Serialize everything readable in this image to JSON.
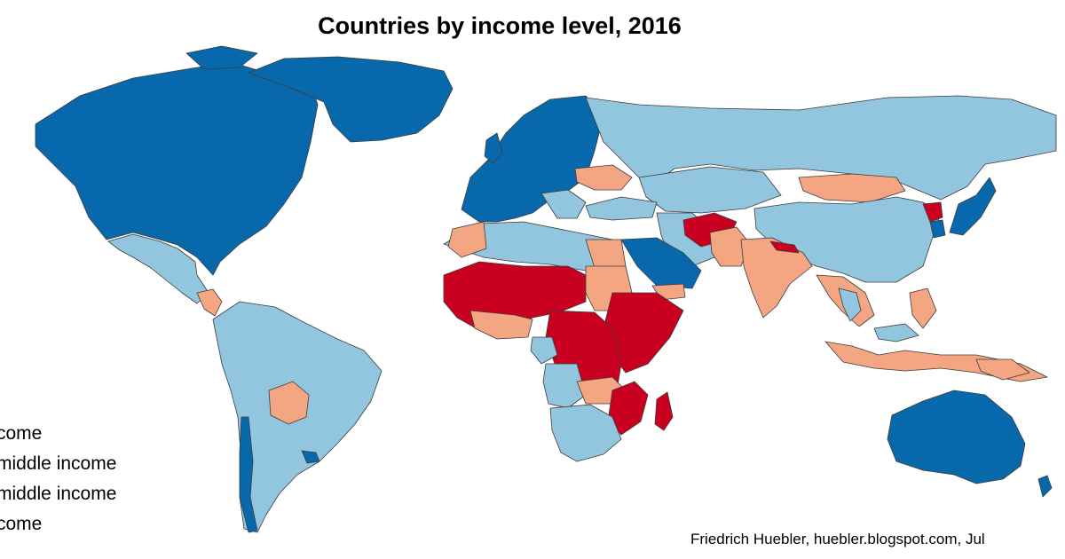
{
  "title": "Countries by income level, 2016",
  "legend": [
    {
      "label": "come",
      "category": "high-income",
      "color": "#0868ac"
    },
    {
      "label": "middle income",
      "category": "upper-middle-income",
      "color": "#92c5de"
    },
    {
      "label": "middle income",
      "category": "lower-middle-income",
      "color": "#f4a582"
    },
    {
      "label": "come",
      "category": "low-income",
      "color": "#ca0020"
    }
  ],
  "source": "Friedrich Huebler, huebler.blogspot.com, Jul",
  "colors": {
    "high": "#0868ac",
    "upper_middle": "#92c5de",
    "lower_middle": "#f4a582",
    "low": "#ca0020",
    "no_data": "#d9d9d9",
    "border": "#3c3c3c"
  }
}
